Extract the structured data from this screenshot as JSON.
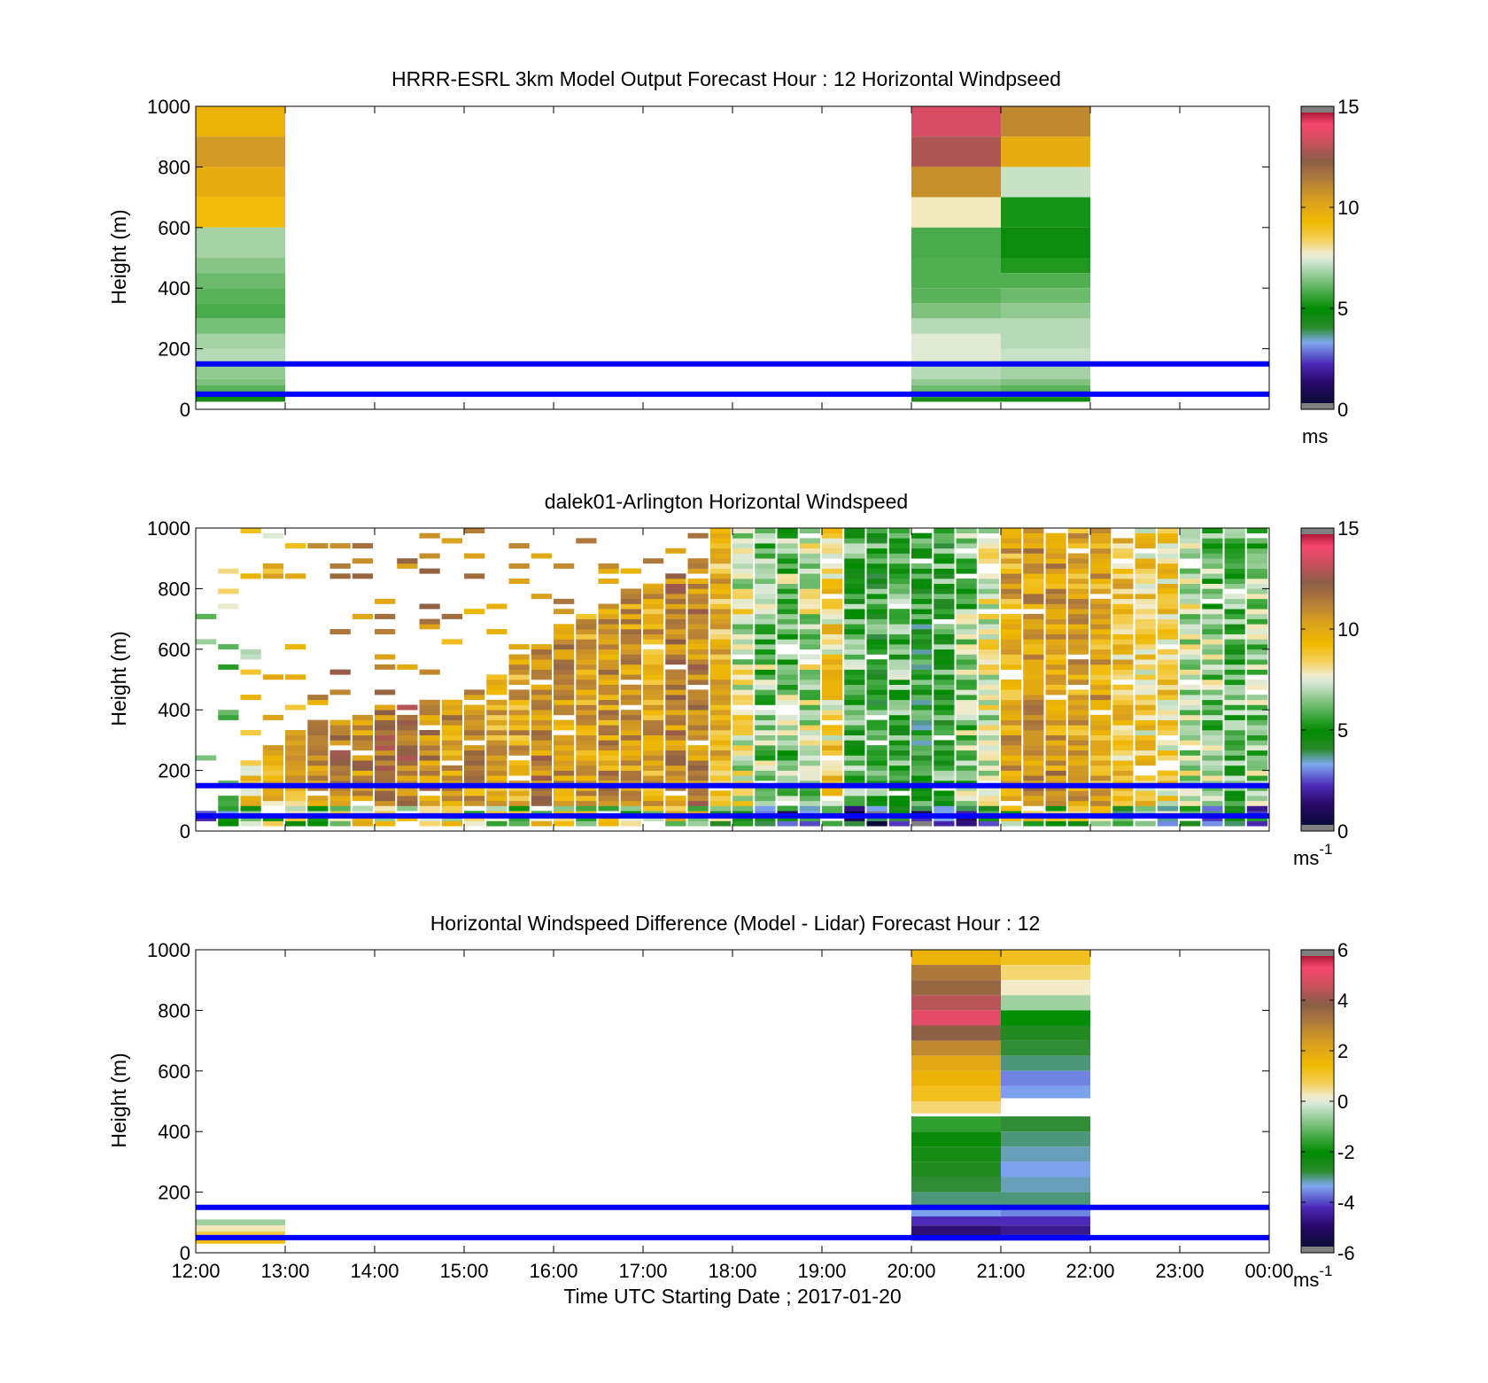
{
  "figure": {
    "xlabel": "Time UTC  Starting Date ; 2017-01-20",
    "xtick_labels": [
      "12:00",
      "13:00",
      "14:00",
      "15:00",
      "16:00",
      "17:00",
      "18:00",
      "19:00",
      "20:00",
      "21:00",
      "22:00",
      "23:00",
      "00:00"
    ],
    "ylabel": "Height (m)",
    "ytick_labels": [
      "0",
      "200",
      "400",
      "600",
      "800",
      "1000"
    ],
    "reference_line_color": "#0000ff"
  },
  "chart_data": [
    {
      "type": "heatmap",
      "title": "HRRR-ESRL 3km Model Output   Forecast Hour : 12 Horizontal Windpseed",
      "xlabel": "",
      "ylabel": "Height (m)",
      "xlim": [
        "12:00",
        "00:00"
      ],
      "ylim": [
        0,
        1000
      ],
      "hlines_m": [
        150,
        50
      ],
      "colorbar": {
        "range": [
          0,
          15
        ],
        "tick_labels": [
          "0",
          "5",
          "10",
          "15"
        ],
        "unit": "ms",
        "unit_sup": ""
      },
      "columns": [
        {
          "start": "12:00",
          "end": "13:00",
          "cells": [
            [
              1000,
              900,
              9.5
            ],
            [
              900,
              800,
              10.5
            ],
            [
              800,
              700,
              9.8
            ],
            [
              700,
              600,
              9.2
            ],
            [
              600,
              500,
              6.8
            ],
            [
              500,
              450,
              6.5
            ],
            [
              450,
              400,
              6.2
            ],
            [
              400,
              350,
              6.0
            ],
            [
              350,
              300,
              5.8
            ],
            [
              300,
              250,
              6.3
            ],
            [
              250,
              200,
              6.8
            ],
            [
              200,
              150,
              7.0
            ],
            [
              150,
              100,
              6.6
            ],
            [
              100,
              80,
              6.4
            ],
            [
              80,
              60,
              6.0
            ],
            [
              60,
              45,
              5.4
            ],
            [
              45,
              35,
              4.8
            ],
            [
              35,
              25,
              4.5
            ]
          ]
        },
        {
          "start": "20:00",
          "end": "21:00",
          "cells": [
            [
              1000,
              900,
              13.5
            ],
            [
              900,
              800,
              12.8
            ],
            [
              800,
              700,
              10.8
            ],
            [
              700,
              600,
              7.8
            ],
            [
              600,
              500,
              5.8
            ],
            [
              500,
              400,
              5.9
            ],
            [
              400,
              350,
              6.0
            ],
            [
              350,
              300,
              6.4
            ],
            [
              300,
              250,
              7.0
            ],
            [
              250,
              150,
              7.5
            ],
            [
              150,
              100,
              7.0
            ],
            [
              100,
              80,
              6.6
            ],
            [
              80,
              60,
              6.2
            ],
            [
              60,
              40,
              5.6
            ],
            [
              40,
              25,
              4.5
            ]
          ]
        },
        {
          "start": "21:00",
          "end": "22:00",
          "cells": [
            [
              1000,
              900,
              11.0
            ],
            [
              900,
              800,
              9.8
            ],
            [
              800,
              700,
              7.2
            ],
            [
              700,
              600,
              5.2
            ],
            [
              600,
              500,
              4.7
            ],
            [
              500,
              450,
              5.3
            ],
            [
              450,
              400,
              5.9
            ],
            [
              400,
              350,
              6.2
            ],
            [
              350,
              300,
              6.6
            ],
            [
              300,
              200,
              7.0
            ],
            [
              200,
              150,
              7.2
            ],
            [
              150,
              100,
              6.8
            ],
            [
              100,
              80,
              6.4
            ],
            [
              80,
              60,
              6.0
            ],
            [
              60,
              40,
              5.4
            ],
            [
              40,
              25,
              4.6
            ]
          ]
        }
      ]
    },
    {
      "type": "heatmap",
      "title": "dalek01-Arlington  Horizontal Windspeed",
      "xlabel": "",
      "ylabel": "Height (m)",
      "xlim": [
        "12:00",
        "00:00"
      ],
      "ylim": [
        0,
        1000
      ],
      "hlines_m": [
        150,
        50
      ],
      "colorbar": {
        "range": [
          0,
          15
        ],
        "tick_labels": [
          "0",
          "5",
          "10",
          "15"
        ],
        "unit": "ms",
        "unit_sup": "-1"
      },
      "time_bins_per_hour": 4,
      "bin_top_heights_m": [
        80,
        120,
        240,
        300,
        340,
        380,
        380,
        400,
        420,
        420,
        440,
        460,
        480,
        520,
        580,
        620,
        680,
        720,
        760,
        800,
        820,
        860,
        900,
        1000,
        1000,
        1000,
        1000,
        1000,
        1000,
        1000,
        1000,
        1000,
        1000,
        1000,
        1000,
        1000,
        1000,
        1000,
        1000,
        1000,
        1000,
        1000,
        1000,
        1000,
        1000,
        1000,
        1000,
        1000
      ],
      "bin_mean_speed": [
        6.5,
        7.0,
        8.5,
        9.0,
        9.5,
        10.5,
        11.0,
        11.0,
        11.5,
        11.5,
        11.0,
        10.5,
        10.5,
        10.0,
        10.0,
        11.0,
        10.5,
        10.0,
        10.5,
        10.5,
        10.0,
        11.0,
        11.0,
        9.5,
        7.5,
        6.5,
        6.5,
        7.0,
        8.5,
        6.0,
        5.5,
        6.0,
        5.0,
        5.5,
        6.5,
        7.5,
        10.0,
        10.5,
        10.5,
        10.0,
        10.0,
        9.0,
        8.5,
        8.5,
        7.0,
        6.5,
        6.0,
        6.5
      ]
    },
    {
      "type": "heatmap",
      "title": "Horizontal Windspeed Difference (Model - Lidar) Forecast Hour : 12",
      "xlabel": "Time UTC  Starting Date ; 2017-01-20",
      "ylabel": "Height (m)",
      "xlim": [
        "12:00",
        "00:00"
      ],
      "ylim": [
        0,
        1000
      ],
      "hlines_m": [
        150,
        50
      ],
      "colorbar": {
        "range": [
          -6,
          6
        ],
        "tick_labels": [
          "-6",
          "-4",
          "-2",
          "0",
          "2",
          "4",
          "6"
        ],
        "unit": "ms",
        "unit_sup": "-1"
      },
      "columns": [
        {
          "start": "12:00",
          "end": "13:00",
          "cells": [
            [
              110,
              90,
              -0.6
            ],
            [
              90,
              70,
              0.3
            ],
            [
              70,
              50,
              0.9
            ],
            [
              50,
              30,
              1.4
            ]
          ]
        },
        {
          "start": "20:00",
          "end": "21:00",
          "cells": [
            [
              1000,
              950,
              1.6
            ],
            [
              950,
              900,
              3.2
            ],
            [
              900,
              850,
              3.6
            ],
            [
              850,
              800,
              4.4
            ],
            [
              800,
              750,
              5.0
            ],
            [
              750,
              700,
              3.8
            ],
            [
              700,
              650,
              2.8
            ],
            [
              650,
              600,
              2.0
            ],
            [
              600,
              550,
              1.6
            ],
            [
              550,
              500,
              1.2
            ],
            [
              500,
              460,
              0.6
            ],
            [
              450,
              400,
              -1.6
            ],
            [
              400,
              350,
              -2.2
            ],
            [
              350,
              300,
              -2.4
            ],
            [
              300,
              250,
              -2.6
            ],
            [
              250,
              200,
              -2.8
            ],
            [
              200,
              150,
              -3.0
            ],
            [
              150,
              120,
              -3.4
            ],
            [
              120,
              90,
              -4.2
            ],
            [
              90,
              60,
              -4.8
            ],
            [
              60,
              40,
              -5.4
            ]
          ]
        },
        {
          "start": "21:00",
          "end": "22:00",
          "cells": [
            [
              1000,
              950,
              1.2
            ],
            [
              950,
              900,
              0.6
            ],
            [
              900,
              850,
              0.2
            ],
            [
              850,
              800,
              -0.6
            ],
            [
              800,
              750,
              -2.0
            ],
            [
              750,
              700,
              -2.6
            ],
            [
              700,
              650,
              -2.8
            ],
            [
              650,
              600,
              -3.0
            ],
            [
              600,
              550,
              -3.6
            ],
            [
              550,
              510,
              -3.4
            ],
            [
              450,
              400,
              -2.8
            ],
            [
              400,
              350,
              -3.0
            ],
            [
              350,
              300,
              -3.2
            ],
            [
              300,
              250,
              -3.4
            ],
            [
              250,
              200,
              -3.2
            ],
            [
              200,
              150,
              -3.0
            ],
            [
              150,
              120,
              -3.6
            ],
            [
              120,
              90,
              -4.2
            ],
            [
              90,
              60,
              -4.6
            ],
            [
              60,
              40,
              -4.2
            ]
          ]
        }
      ]
    }
  ]
}
